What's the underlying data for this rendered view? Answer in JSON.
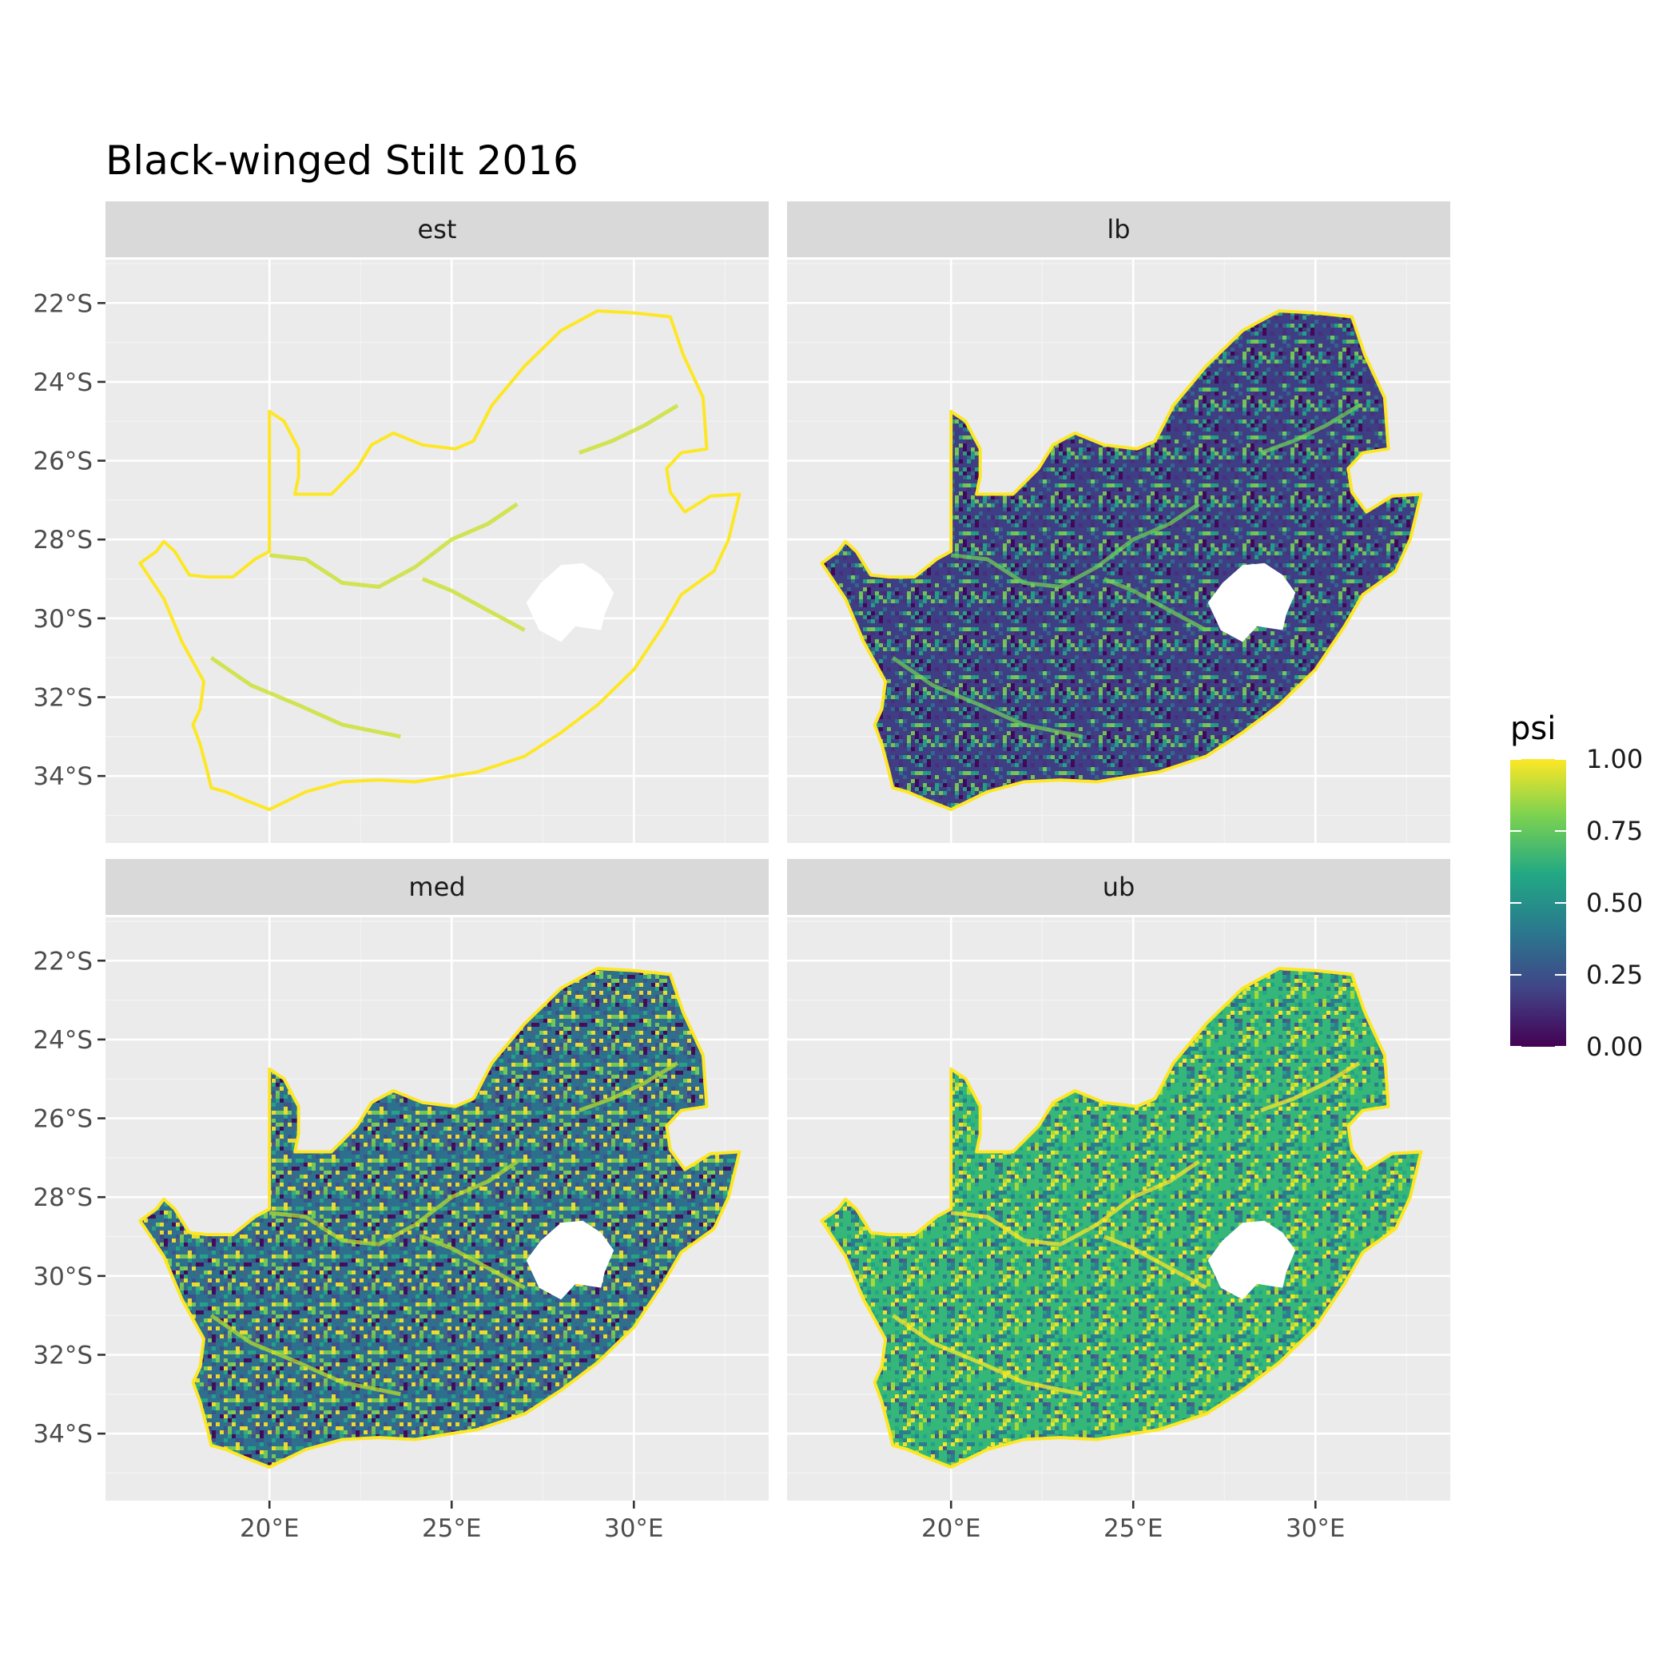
{
  "title": "Black-winged Stilt 2016",
  "panels": [
    {
      "key": "est",
      "label": "est"
    },
    {
      "key": "lb",
      "label": "lb"
    },
    {
      "key": "med",
      "label": "med"
    },
    {
      "key": "ub",
      "label": "ub"
    }
  ],
  "axes": {
    "x_ticks": [
      "20°E",
      "25°E",
      "30°E"
    ],
    "y_ticks": [
      "22°S",
      "24°S",
      "26°S",
      "28°S",
      "30°S",
      "32°S",
      "34°S"
    ]
  },
  "legend": {
    "title": "psi",
    "labels": [
      "1.00",
      "0.75",
      "0.50",
      "0.25",
      "0.00"
    ],
    "colors": [
      "#fde725",
      "#7ad151",
      "#22a884",
      "#2a788e",
      "#414487",
      "#440154"
    ]
  },
  "colors": {
    "panel_bg": "#ebebeb",
    "strip_bg": "#d9d9d9",
    "grid": "#ffffff",
    "lesotho_hole": "#ffffff"
  }
}
